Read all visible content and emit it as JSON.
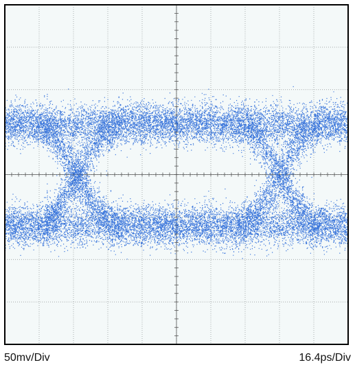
{
  "chart_data": {
    "type": "scatter",
    "title": "",
    "subtitle": "",
    "xlabel": "",
    "ylabel": "",
    "grid": true,
    "graticule": {
      "divisions_x": 10,
      "divisions_y": 8,
      "minor_ticks_per_division": 5
    },
    "xlim": [
      0,
      10
    ],
    "ylim": [
      -4,
      4
    ],
    "series": [
      {
        "kind": "eye-diagram",
        "color": "#1a5fd6",
        "upper_rail_level": 1.2,
        "lower_rail_level": -1.2,
        "crossing_level": 0.05,
        "crossing_x": [
          2.1,
          8.0
        ],
        "transition_halfwidth": 1.25,
        "noise_sigma": 0.23,
        "traces": 2200
      }
    ],
    "annotations": {
      "vertical_scale": "50mv/Div",
      "horizontal_scale": "16.4ps/Div"
    },
    "colors": {
      "background": "#f4f9f9",
      "grid": "#8a8f8f",
      "frame": "#000000",
      "trace": "#1a5fd6"
    }
  }
}
